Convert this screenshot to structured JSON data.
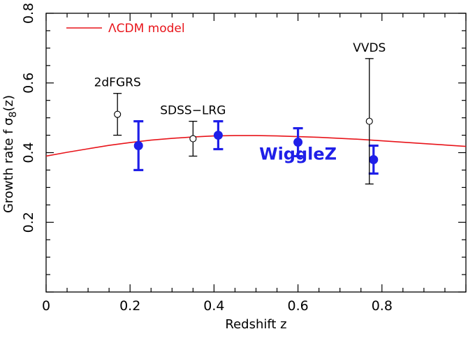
{
  "chart_data": {
    "type": "scatter",
    "title": "",
    "xlabel": "Redshift z",
    "ylabel_main": "Growth rate f σ",
    "ylabel_sub": "8",
    "ylabel_tail": "(z)",
    "xlim": [
      0,
      1.0
    ],
    "ylim": [
      0,
      0.8
    ],
    "x_ticks": [
      {
        "value": 0,
        "label": "0"
      },
      {
        "value": 0.2,
        "label": "0.2"
      },
      {
        "value": 0.4,
        "label": "0.4"
      },
      {
        "value": 0.6,
        "label": "0.6"
      },
      {
        "value": 0.8,
        "label": "0.8"
      }
    ],
    "y_ticks": [
      {
        "value": 0.2,
        "label": "0.2"
      },
      {
        "value": 0.4,
        "label": "0.4"
      },
      {
        "value": 0.6,
        "label": "0.6"
      },
      {
        "value": 0.8,
        "label": "0.8"
      }
    ],
    "grid": false,
    "legend": {
      "position": "top-left",
      "entries": [
        {
          "name": "ΛCDM model",
          "color": "#e8141a"
        }
      ]
    },
    "model_curve": {
      "name": "ΛCDM model",
      "color": "#e8141a",
      "x": [
        0.0,
        0.05,
        0.1,
        0.15,
        0.2,
        0.25,
        0.3,
        0.35,
        0.4,
        0.45,
        0.5,
        0.55,
        0.6,
        0.65,
        0.7,
        0.75,
        0.8,
        0.85,
        0.9,
        0.95,
        1.0
      ],
      "y": [
        0.39,
        0.401,
        0.411,
        0.421,
        0.429,
        0.436,
        0.441,
        0.445,
        0.448,
        0.449,
        0.449,
        0.448,
        0.446,
        0.444,
        0.441,
        0.438,
        0.434,
        0.43,
        0.426,
        0.422,
        0.418
      ]
    },
    "series": [
      {
        "name": "WiggleZ",
        "color": "#1f1fe8",
        "marker": "filled-circle",
        "points": [
          {
            "x": 0.22,
            "y": 0.42,
            "err_low": 0.07,
            "err_high": 0.07
          },
          {
            "x": 0.41,
            "y": 0.45,
            "err_low": 0.04,
            "err_high": 0.04
          },
          {
            "x": 0.6,
            "y": 0.43,
            "err_low": 0.04,
            "err_high": 0.04
          },
          {
            "x": 0.78,
            "y": 0.38,
            "err_low": 0.04,
            "err_high": 0.04
          }
        ]
      },
      {
        "name": "",
        "color": "#000000",
        "marker": "open-circle",
        "points": [
          {
            "x": 0.17,
            "y": 0.51,
            "err_low": 0.06,
            "err_high": 0.06
          },
          {
            "x": 0.35,
            "y": 0.44,
            "err_low": 0.05,
            "err_high": 0.05
          },
          {
            "x": 0.77,
            "y": 0.49,
            "err_low": 0.18,
            "err_high": 0.18
          }
        ]
      }
    ],
    "annotations": [
      {
        "text": "2dFGRS",
        "x": 0.17,
        "y": 0.59,
        "color": "#000000"
      },
      {
        "text": "SDSS−LRG",
        "x": 0.35,
        "y": 0.51,
        "color": "#000000"
      },
      {
        "text": "VVDS",
        "x": 0.77,
        "y": 0.69,
        "color": "#000000"
      },
      {
        "text": "WiggleZ",
        "x": 0.6,
        "y": 0.38,
        "color": "#1f1fe8"
      }
    ]
  }
}
